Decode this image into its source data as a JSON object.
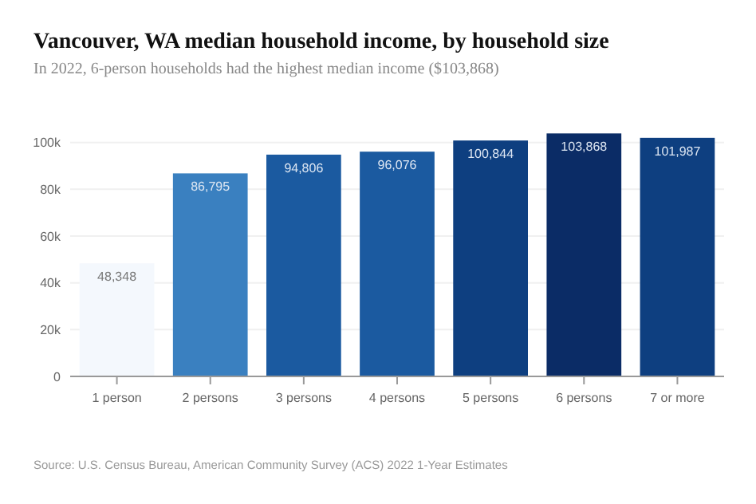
{
  "chart_data": {
    "type": "bar",
    "title": "Vancouver, WA median household income, by household size",
    "subtitle": "In 2022, 6-person households had the highest median income ($103,868)",
    "categories": [
      "1 person",
      "2 persons",
      "3 persons",
      "4 persons",
      "5 persons",
      "6 persons",
      "7 or more"
    ],
    "values": [
      48348,
      86795,
      94806,
      96076,
      100844,
      103868,
      101987
    ],
    "colors": [
      "#f4f8fd",
      "#3a80c0",
      "#1b5aa0",
      "#1b5aa0",
      "#0e3f80",
      "#0b2c66",
      "#0e3f80"
    ],
    "value_labels": [
      "48,348",
      "86,795",
      "94,806",
      "96,076",
      "100,844",
      "103,868",
      "101,987"
    ],
    "ylim": [
      0,
      105000
    ],
    "yticks": [
      0,
      {
        "value": 20000,
        "label": "20k"
      },
      {
        "value": 40000,
        "label": "40k"
      },
      {
        "value": 60000,
        "label": "60k"
      },
      {
        "value": 80000,
        "label": "80k"
      },
      {
        "value": 100000,
        "label": "100k"
      }
    ],
    "grid": "y",
    "annotations": [
      "Source: U.S. Census Bureau, American Community Survey (ACS) 2022 1-Year Estimates"
    ]
  }
}
